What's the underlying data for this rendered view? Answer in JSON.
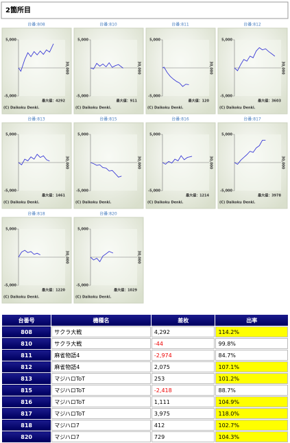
{
  "header": {
    "title": "2箇所目"
  },
  "graph_axes": {
    "ylim": [
      -5000,
      5000
    ],
    "xlim": [
      0,
      30000
    ],
    "yticks": [
      {
        "value": 5000,
        "label": "5,000"
      },
      {
        "value": -5000,
        "label": "-5,000"
      }
    ],
    "xticks": [
      {
        "value": 30000,
        "label": "30,000"
      }
    ],
    "copyright": "(C) Daikoku Denki."
  },
  "graphs": [
    {
      "label": "台番:808",
      "max_label": "最大値：4292",
      "x": [
        0,
        1500,
        4000,
        6000,
        8000,
        10000,
        12000,
        14000,
        16000,
        18000,
        20000,
        22500
      ],
      "y": [
        0,
        -600,
        1500,
        2700,
        2000,
        2900,
        2300,
        3000,
        2400,
        3200,
        2800,
        4292
      ]
    },
    {
      "label": "台番:810",
      "max_label": "最大値：911",
      "x": [
        0,
        2000,
        4000,
        6000,
        8000,
        10000,
        12000,
        14000,
        16000,
        18000,
        21000
      ],
      "y": [
        0,
        -200,
        800,
        300,
        700,
        200,
        911,
        100,
        400,
        600,
        -44
      ]
    },
    {
      "label": "台番:811",
      "max_label": "最大値：120",
      "x": [
        0,
        1000,
        3000,
        5000,
        7000,
        9000,
        11000,
        13000,
        15000,
        17000
      ],
      "y": [
        0,
        120,
        -800,
        -1500,
        -2000,
        -2400,
        -2700,
        -3300,
        -2900,
        -2974
      ]
    },
    {
      "label": "台番:812",
      "max_label": "最大値：3603",
      "x": [
        0,
        2000,
        4000,
        6000,
        8000,
        10000,
        12000,
        14000,
        16000,
        18000,
        20000,
        22000,
        24000,
        26000
      ],
      "y": [
        0,
        -500,
        600,
        1500,
        1200,
        2100,
        1800,
        3000,
        3603,
        3200,
        3400,
        2900,
        2500,
        2075
      ]
    },
    {
      "label": "台番:813",
      "max_label": "最大値：1461",
      "x": [
        0,
        2000,
        4000,
        6000,
        8000,
        10000,
        12000,
        14000,
        16000,
        18000,
        20000
      ],
      "y": [
        0,
        -400,
        600,
        300,
        1000,
        600,
        1461,
        900,
        1200,
        500,
        253
      ]
    },
    {
      "label": "台番:815",
      "max_label": "",
      "x": [
        0,
        2000,
        4000,
        6000,
        8000,
        10000,
        12000,
        14000,
        16000,
        18000,
        20000
      ],
      "y": [
        0,
        -200,
        -500,
        -400,
        -900,
        -1000,
        -1500,
        -1400,
        -2000,
        -2600,
        -2418
      ]
    },
    {
      "label": "台番:816",
      "max_label": "最大値：1214",
      "x": [
        0,
        2000,
        4000,
        6000,
        8000,
        10000,
        12000,
        14000,
        16000,
        19000
      ],
      "y": [
        0,
        -300,
        200,
        -100,
        600,
        300,
        1214,
        500,
        900,
        1111
      ]
    },
    {
      "label": "台番:817",
      "max_label": "最大値：3978",
      "x": [
        0,
        2000,
        4000,
        6000,
        8000,
        10000,
        12000,
        14000,
        16000,
        18000,
        20000
      ],
      "y": [
        0,
        -300,
        400,
        900,
        1400,
        2000,
        1800,
        2600,
        3000,
        3978,
        3975
      ]
    },
    {
      "label": "台番:818",
      "max_label": "最大値：1220",
      "x": [
        0,
        2000,
        4000,
        6000,
        8000,
        10000,
        12000,
        14000
      ],
      "y": [
        0,
        900,
        1220,
        800,
        1000,
        500,
        700,
        412
      ]
    },
    {
      "label": "台番:820",
      "max_label": "最大値：1029",
      "x": [
        0,
        2000,
        4000,
        6000,
        8000,
        10000,
        12000,
        14500
      ],
      "y": [
        0,
        -500,
        -200,
        -800,
        200,
        600,
        1029,
        729
      ]
    }
  ],
  "table": {
    "headers": [
      "台番号",
      "機種名",
      "差枚",
      "出率"
    ],
    "rows": [
      {
        "cells": [
          "808",
          "サクラ大戦",
          "4,292",
          "114.2%"
        ],
        "highlight": true
      },
      {
        "cells": [
          "810",
          "サクラ大戦",
          "-44",
          "99.8%"
        ],
        "highlight": false
      },
      {
        "cells": [
          "811",
          "麻雀物語4",
          "-2,974",
          "84.7%"
        ],
        "highlight": false
      },
      {
        "cells": [
          "812",
          "麻雀物語4",
          "2,075",
          "107.1%"
        ],
        "highlight": true
      },
      {
        "cells": [
          "813",
          "マジハロToT",
          "253",
          "101.2%"
        ],
        "highlight": true
      },
      {
        "cells": [
          "815",
          "マジハロToT",
          "-2,418",
          "88.7%"
        ],
        "highlight": false
      },
      {
        "cells": [
          "816",
          "マジハロToT",
          "1,111",
          "104.9%"
        ],
        "highlight": true
      },
      {
        "cells": [
          "817",
          "マジハロToT",
          "3,975",
          "118.0%"
        ],
        "highlight": true
      },
      {
        "cells": [
          "818",
          "マジハロ7",
          "412",
          "102.7%"
        ],
        "highlight": true
      },
      {
        "cells": [
          "820",
          "マジハロ7",
          "729",
          "104.3%"
        ],
        "highlight": true
      }
    ]
  }
}
